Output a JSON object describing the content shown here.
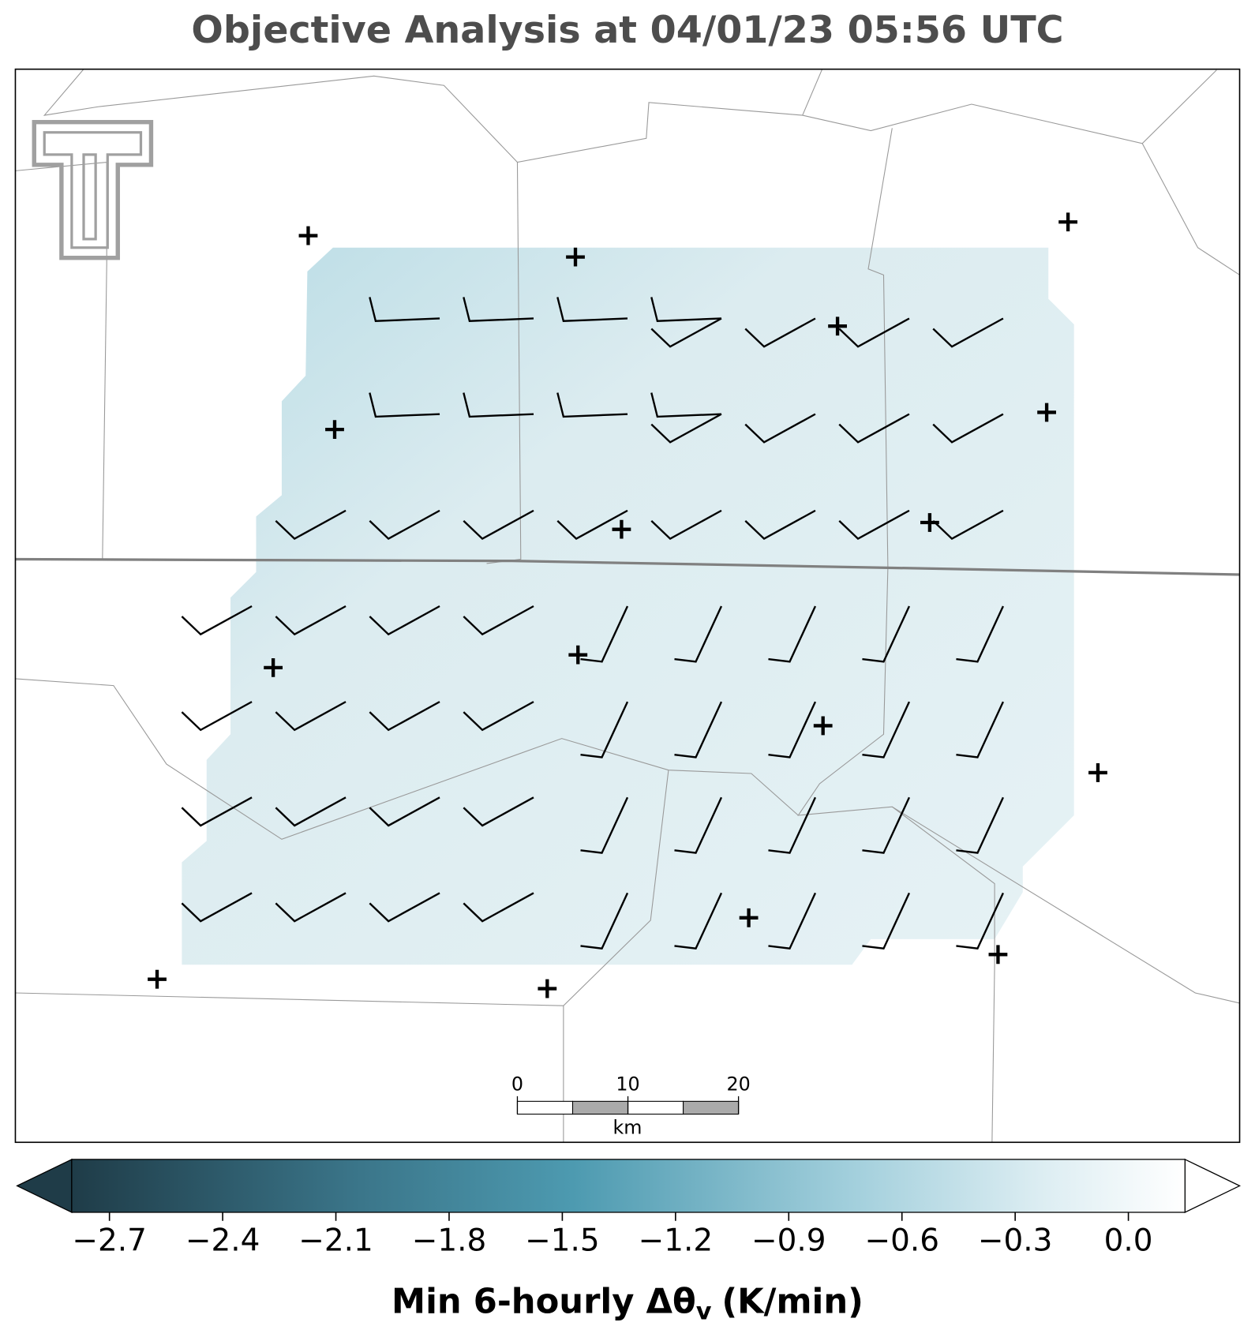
{
  "title": "Objective Analysis at 04/01/23 05:56 UTC",
  "colorbar": {
    "clim": [
      -2.8,
      0.15
    ],
    "ticks": [
      {
        "value": -2.7,
        "label": "−2.7"
      },
      {
        "value": -2.4,
        "label": "−2.4"
      },
      {
        "value": -2.1,
        "label": "−2.1"
      },
      {
        "value": -1.8,
        "label": "−1.8"
      },
      {
        "value": -1.5,
        "label": "−1.5"
      },
      {
        "value": -1.2,
        "label": "−1.2"
      },
      {
        "value": -0.9,
        "label": "−0.9"
      },
      {
        "value": -0.6,
        "label": "−0.6"
      },
      {
        "value": -0.3,
        "label": "−0.3"
      },
      {
        "value": 0,
        "label": "0.0"
      }
    ],
    "label": {
      "text": "Min 6-hourly Δθ",
      "subscript": "v",
      "suffix": "(K/min)"
    }
  },
  "scale_bar": {
    "xlim": [
      0,
      20
    ],
    "ticks": [
      0,
      10,
      20
    ],
    "unit": "km"
  }
}
